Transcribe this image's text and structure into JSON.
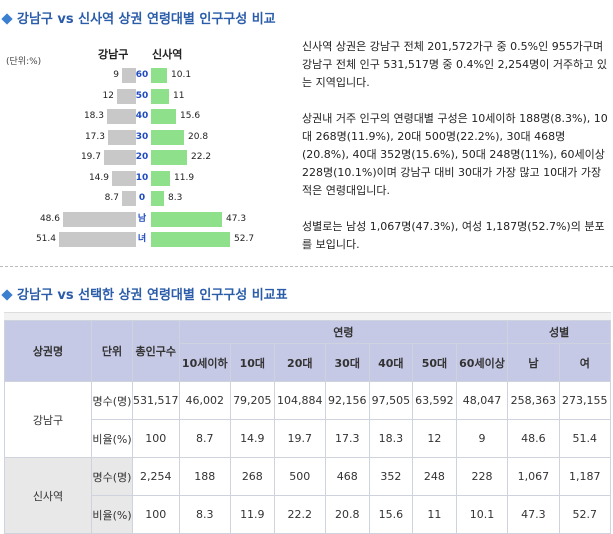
{
  "section1": {
    "title": "강남구 vs 신사역 상권 연령대별 인구구성 비교"
  },
  "pyramid": {
    "unit": "(단위:%)",
    "left_header": "강남구",
    "right_header": "신사역",
    "rows": [
      {
        "label": "60",
        "left": 9,
        "right": 10.1,
        "left_text": "9",
        "right_text": "10.1"
      },
      {
        "label": "50",
        "left": 12,
        "right": 11,
        "left_text": "12",
        "right_text": "11"
      },
      {
        "label": "40",
        "left": 18.3,
        "right": 15.6,
        "left_text": "18.3",
        "right_text": "15.6"
      },
      {
        "label": "30",
        "left": 17.3,
        "right": 20.8,
        "left_text": "17.3",
        "right_text": "20.8"
      },
      {
        "label": "20",
        "left": 19.7,
        "right": 22.2,
        "left_text": "19.7",
        "right_text": "22.2"
      },
      {
        "label": "10",
        "left": 14.9,
        "right": 11.9,
        "left_text": "14.9",
        "right_text": "11.9"
      },
      {
        "label": "0",
        "left": 8.7,
        "right": 8.3,
        "left_text": "8.7",
        "right_text": "8.3"
      },
      {
        "label": "남",
        "left": 48.6,
        "right": 47.3,
        "left_text": "48.6",
        "right_text": "47.3"
      },
      {
        "label": "녀",
        "left": 51.4,
        "right": 52.7,
        "left_text": "51.4",
        "right_text": "52.7"
      }
    ]
  },
  "description": {
    "p1": "신사역 상권은 강남구 전체 201,572가구 중 0.5%인 955가구며 강남구 전체 인구 531,517명 중 0.4%인 2,254명이 거주하고 있는 지역입니다.",
    "p2": "상권내 거주 인구의 연령대별 구성은 10세이하 188명(8.3%), 10대 268명(11.9%), 20대 500명(22.2%), 30대 468명(20.8%), 40대 352명(15.6%), 50대 248명(11%), 60세이상 228명(10.1%)이며 강남구 대비 30대가 가장 많고 10대가 가장 적은 연령대입니다.",
    "p3": "성별로는 남성 1,067명(47.3%), 여성 1,187명(52.7%)의 분포를 보입니다."
  },
  "section2": {
    "title": "강남구 vs 선택한 상권 연령대별 인구구성 비교표"
  },
  "table": {
    "h_region": "상권명",
    "h_unit": "단위",
    "h_total": "총인구수",
    "h_age": "연령",
    "h_gender": "성별",
    "age_cols": [
      "10세이하",
      "10대",
      "20대",
      "30대",
      "40대",
      "50대",
      "60세이상"
    ],
    "gender_cols": [
      "남",
      "여"
    ],
    "regions": [
      {
        "name": "강남구",
        "rows": [
          {
            "unit": "명수(명)",
            "values": [
              "531,517",
              "46,002",
              "79,205",
              "104,884",
              "92,156",
              "97,505",
              "63,592",
              "48,047",
              "258,363",
              "273,155"
            ]
          },
          {
            "unit": "비율(%)",
            "values": [
              "100",
              "8.7",
              "14.9",
              "19.7",
              "17.3",
              "18.3",
              "12",
              "9",
              "48.6",
              "51.4"
            ]
          }
        ]
      },
      {
        "name": "신사역",
        "rows": [
          {
            "unit": "명수(명)",
            "values": [
              "2,254",
              "188",
              "268",
              "500",
              "468",
              "352",
              "248",
              "228",
              "1,067",
              "1,187"
            ]
          },
          {
            "unit": "비율(%)",
            "values": [
              "100",
              "8.3",
              "11.9",
              "22.2",
              "20.8",
              "15.6",
              "11",
              "10.1",
              "47.3",
              "52.7"
            ]
          }
        ]
      }
    ]
  }
}
